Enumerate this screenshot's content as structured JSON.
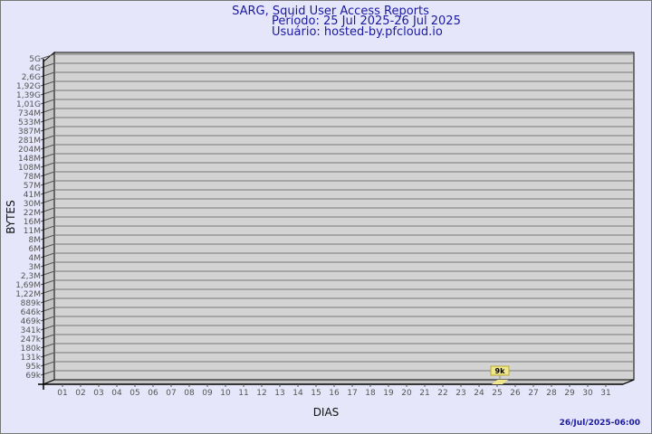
{
  "chart_data": {
    "type": "bar",
    "title": "SARG, Squid User Access Reports",
    "subtitle_period": "Período: 25 Jul 2025-26 Jul 2025",
    "subtitle_user": "Usuário: hosted-by.pfcloud.io",
    "xlabel": "DIAS",
    "ylabel": "BYTES",
    "y_scale": "log",
    "y_tick_labels": [
      "5G",
      "4G",
      "2,6G",
      "1,92G",
      "1,39G",
      "1,01G",
      "734M",
      "533M",
      "387M",
      "281M",
      "204M",
      "148M",
      "108M",
      "78M",
      "57M",
      "41M",
      "30M",
      "22M",
      "16M",
      "11M",
      "8M",
      "6M",
      "4M",
      "3M",
      "2,3M",
      "1,69M",
      "1,22M",
      "889k",
      "646k",
      "469k",
      "341k",
      "247k",
      "180k",
      "131k",
      "95k",
      "69k"
    ],
    "categories": [
      "01",
      "02",
      "03",
      "04",
      "05",
      "06",
      "07",
      "08",
      "09",
      "10",
      "11",
      "12",
      "13",
      "14",
      "15",
      "16",
      "17",
      "18",
      "19",
      "20",
      "21",
      "22",
      "23",
      "24",
      "25",
      "26",
      "27",
      "28",
      "29",
      "30",
      "31"
    ],
    "values": [
      null,
      null,
      null,
      null,
      null,
      null,
      null,
      null,
      null,
      null,
      null,
      null,
      null,
      null,
      null,
      null,
      null,
      null,
      null,
      null,
      null,
      null,
      null,
      null,
      9000,
      null,
      null,
      null,
      null,
      null,
      null
    ],
    "data_labels": {
      "25": "9k"
    },
    "grid": true,
    "colors": {
      "background": "#e6e6fa",
      "plot": "#d3d3d3",
      "bar": "#f0e68c",
      "title": "#1a1aa0"
    }
  },
  "footer_timestamp": "26/Jul/2025-06:00"
}
